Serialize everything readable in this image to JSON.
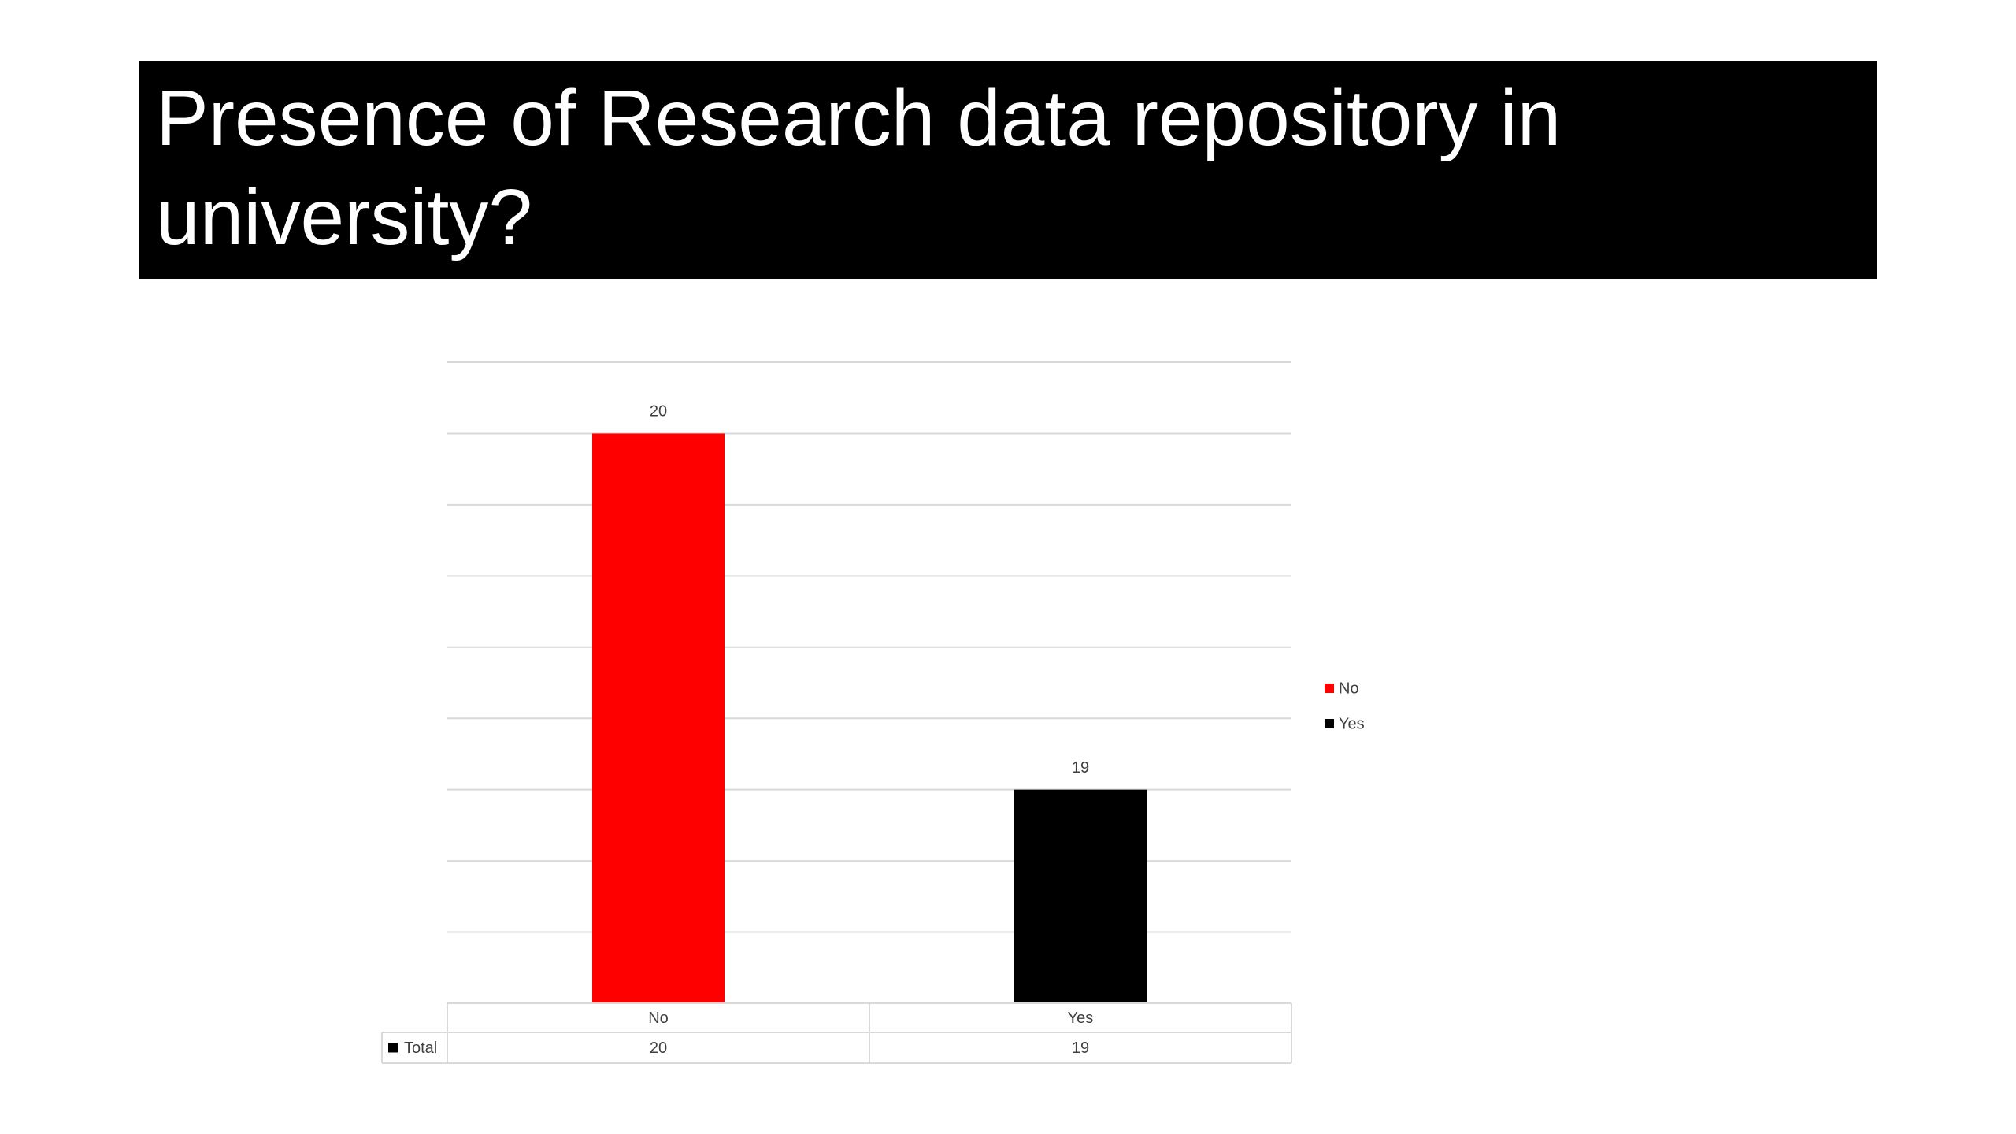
{
  "chart_data": {
    "type": "bar",
    "title": "Presence of Research data repository in university?",
    "categories": [
      "No",
      "Yes"
    ],
    "series": [
      {
        "name": "Total",
        "color": "#000000",
        "values": [
          20,
          19
        ]
      }
    ],
    "point_colors": [
      "#ff0000",
      "#000000"
    ],
    "ylim": [
      18.4,
      20.2
    ],
    "yticks": [
      18.4,
      18.6,
      18.8,
      19,
      19.2,
      19.4,
      19.6,
      19.8,
      20,
      20.2
    ],
    "grid": true,
    "legend": "right",
    "data_table": true
  }
}
